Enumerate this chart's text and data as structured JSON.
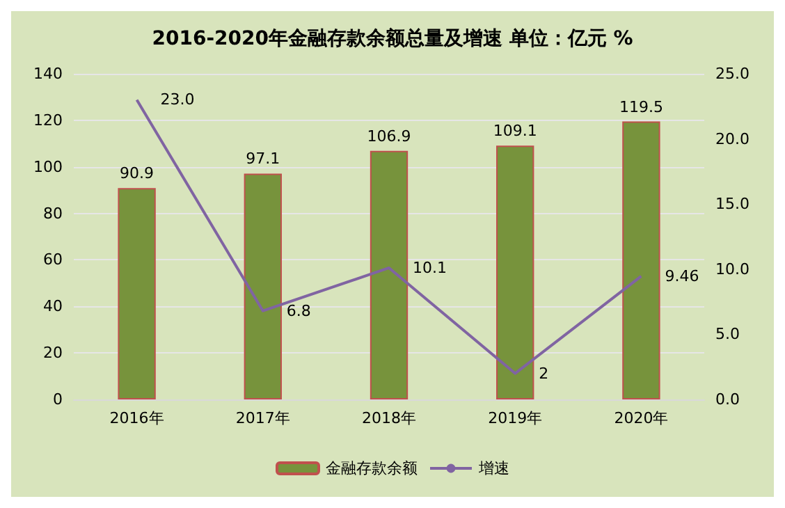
{
  "chart_data": {
    "type": "bar",
    "title": "2016-2020年金融存款余额总量及增速 单位：亿元 %",
    "categories": [
      "2016年",
      "2017年",
      "2018年",
      "2019年",
      "2020年"
    ],
    "series": [
      {
        "name": "金融存款余额",
        "color": "#77933c",
        "values": [
          90.9,
          97.1,
          106.9,
          109.1,
          119.5
        ],
        "value_labels": [
          "90.9",
          "97.1",
          "106.9",
          "109.1",
          "119.5"
        ]
      },
      {
        "name": "增速",
        "type": "line",
        "axis": "y2",
        "color": "#8064a2",
        "values": [
          23.0,
          6.8,
          10.1,
          2,
          9.46
        ],
        "value_labels": [
          "23.0",
          "6.8",
          "10.1",
          "2",
          "9.46"
        ]
      }
    ],
    "ylim": [
      0,
      140
    ],
    "yticks": [
      0,
      20,
      40,
      60,
      80,
      100,
      120,
      140
    ],
    "y2lim": [
      0,
      25
    ],
    "y2ticks": [
      {
        "value": 0,
        "label": "0.0"
      },
      {
        "value": 5,
        "label": "5.0"
      },
      {
        "value": 10,
        "label": "10.0"
      },
      {
        "value": 15,
        "label": "15.0"
      },
      {
        "value": 20,
        "label": "20.0"
      },
      {
        "value": 25,
        "label": "25.0"
      }
    ],
    "grid": "y",
    "legend": "bottom",
    "marker": "none",
    "line_style": "solid"
  }
}
